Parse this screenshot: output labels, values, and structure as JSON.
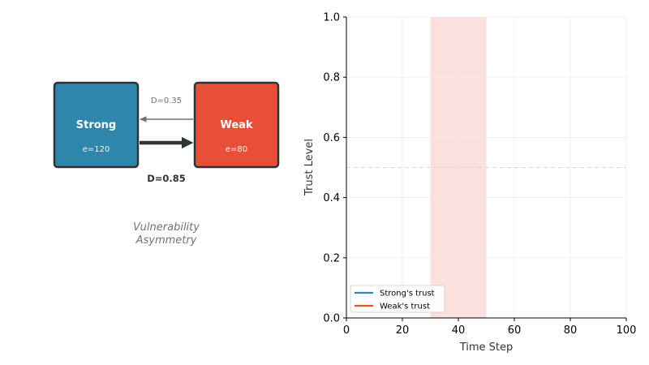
{
  "diagram": {
    "nodes": [
      {
        "name": "Strong",
        "e_label": "e=120",
        "color": "#2e86ab"
      },
      {
        "name": "Weak",
        "e_label": "e=80",
        "color": "#e94f37"
      }
    ],
    "edges": [
      {
        "label": "D=0.35",
        "direction": "weak-to-strong",
        "style": "thin-gray"
      },
      {
        "label": "D=0.85",
        "direction": "strong-to-weak",
        "style": "thick-dark"
      }
    ],
    "caption_line1": "Vulnerability",
    "caption_line2": "Asymmetry",
    "border_color": "#2d3436"
  },
  "chart_data": {
    "type": "line",
    "xlabel": "Time Step",
    "ylabel": "Trust Level",
    "xlim": [
      0,
      100
    ],
    "ylim": [
      0,
      1
    ],
    "xticks": [
      0,
      20,
      40,
      60,
      80,
      100
    ],
    "yticks": [
      0.0,
      0.2,
      0.4,
      0.6,
      0.8,
      1.0
    ],
    "grid": true,
    "reference_line": {
      "y": 0.5,
      "style": "dashed"
    },
    "shaded_region": {
      "x_start": 30,
      "x_end": 50,
      "color": "#fadbd8"
    },
    "series": [
      {
        "name": "Strong's trust",
        "color": "#2e86ab",
        "x": [],
        "y": []
      },
      {
        "name": "Weak's trust",
        "color": "#e94f37",
        "x": [],
        "y": []
      }
    ],
    "legend_position": "lower-left"
  }
}
